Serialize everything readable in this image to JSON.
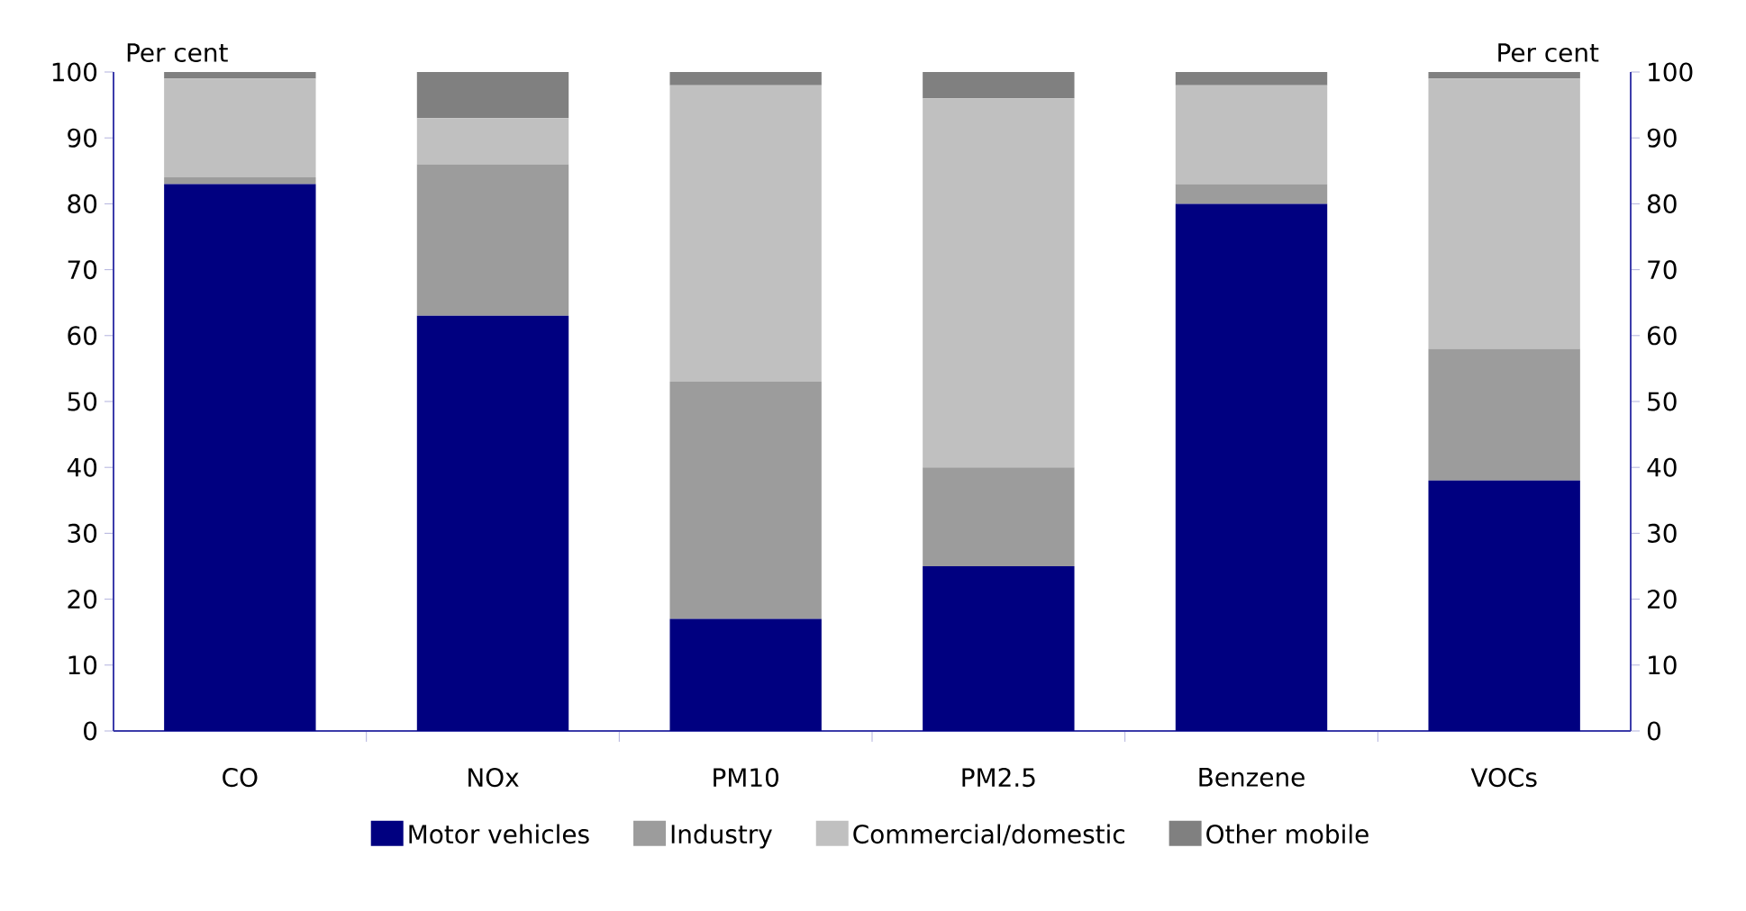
{
  "chart_data": {
    "type": "bar",
    "stacked": true,
    "annotations": [
      "Per cent",
      "Per cent"
    ],
    "categories": [
      "CO",
      "NOx",
      "PM10",
      "PM2.5",
      "Benzene",
      "VOCs"
    ],
    "series": [
      {
        "name": "Motor vehicles",
        "color": "#000080",
        "values": [
          83,
          63,
          17,
          25,
          80,
          38
        ]
      },
      {
        "name": "Industry",
        "color": "#9c9c9c",
        "values": [
          1,
          23,
          36,
          15,
          3,
          20
        ]
      },
      {
        "name": "Commercial/domestic",
        "color": "#c0c0c0",
        "values": [
          15,
          7,
          45,
          56,
          15,
          41
        ]
      },
      {
        "name": "Other mobile",
        "color": "#808080",
        "values": [
          1,
          7,
          2,
          4,
          2,
          1
        ]
      }
    ],
    "ylim": [
      0,
      100
    ],
    "yticks": [
      0,
      10,
      20,
      30,
      40,
      50,
      60,
      70,
      80,
      90,
      100
    ],
    "y2lim": [
      0,
      100
    ],
    "y2ticks": [
      0,
      10,
      20,
      30,
      40,
      50,
      60,
      70,
      80,
      90,
      100
    ],
    "grid": false,
    "legend": "bottom"
  }
}
